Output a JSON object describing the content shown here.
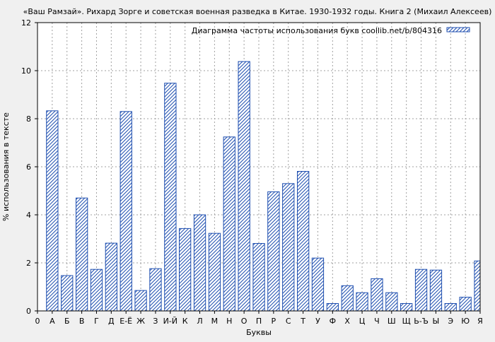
{
  "chart_data": {
    "type": "bar",
    "title": "«Ваш Рамзай». Рихард Зорге и советская военная разведка в Китае. 1930-1932 годы. Книга 2 (Михаил Алексеев)",
    "xlabel": "Буквы",
    "ylabel": "% использования в тексте",
    "ylim": [
      0,
      12
    ],
    "yticks": [
      "0",
      "2",
      "4",
      "6",
      "8",
      "10",
      "12"
    ],
    "categories": [
      "0",
      "А",
      "Б",
      "В",
      "Г",
      "Д",
      "Е-Ё",
      "Ж",
      "З",
      "И-Й",
      "К",
      "Л",
      "М",
      "Н",
      "О",
      "П",
      "Р",
      "С",
      "Т",
      "У",
      "Ф",
      "Х",
      "Ц",
      "Ч",
      "Ш",
      "Щ",
      "Ь-Ъ",
      "Ы",
      "Э",
      "Ю",
      "Я"
    ],
    "series": [
      {
        "name": "Диаграмма частоты использования букв coollib.net/b/804316",
        "values": [
          0,
          8.33,
          1.47,
          4.7,
          1.73,
          2.82,
          8.3,
          0.85,
          1.76,
          9.48,
          3.43,
          4.0,
          3.23,
          7.24,
          10.38,
          2.81,
          4.96,
          5.3,
          5.81,
          2.2,
          0.31,
          1.05,
          0.76,
          1.34,
          0.76,
          0.31,
          1.73,
          1.7,
          0.31,
          0.57,
          2.08
        ]
      }
    ],
    "grid": true,
    "legend_position": "top-right",
    "bar_color": "#1f4fb0",
    "background": "#f0f0f0"
  }
}
